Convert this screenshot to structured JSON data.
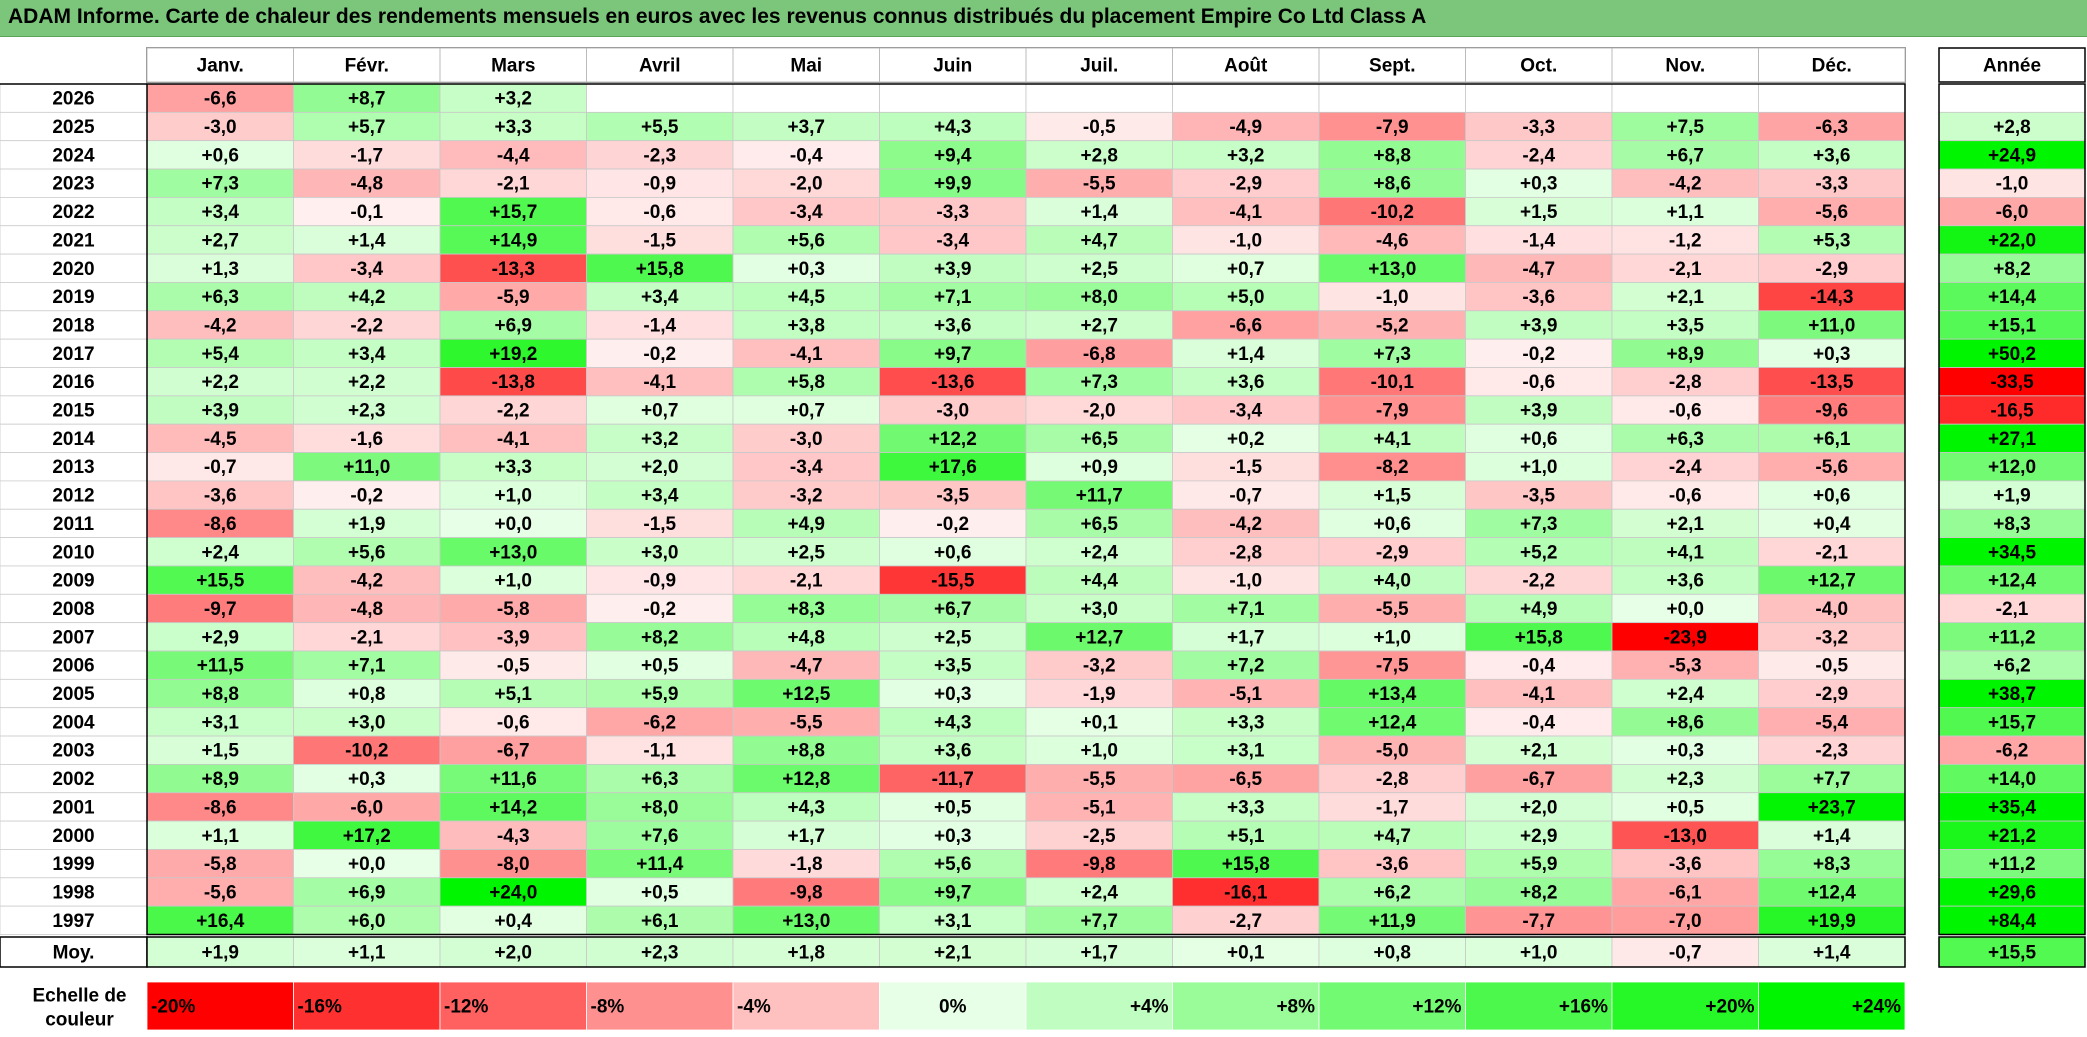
{
  "title": "ADAM Informe. Carte de chaleur des rendements mensuels en euros avec les revenus connus distribués du placement Empire Co Ltd Class A",
  "colors": {
    "title_bg": "#7bc67b",
    "positive_max": "#00ff00",
    "negative_max": "#ff0000",
    "neutral": "#ffffff"
  },
  "chart_data": {
    "type": "heatmap",
    "title": "ADAM Informe. Carte de chaleur des rendements mensuels en euros avec les revenus connus distribués du placement Empire Co Ltd Class A",
    "months": [
      "Janv.",
      "Févr.",
      "Mars",
      "Avril",
      "Mai",
      "Juin",
      "Juil.",
      "Août",
      "Sept.",
      "Oct.",
      "Nov.",
      "Déc."
    ],
    "year_header": "Année",
    "rows": [
      {
        "year": "2026",
        "values": [
          "-6,6",
          "+8,7",
          "+3,2",
          "",
          "",
          "",
          "",
          "",
          "",
          "",
          "",
          ""
        ],
        "annual": ""
      },
      {
        "year": "2025",
        "values": [
          "-3,0",
          "+5,7",
          "+3,3",
          "+5,5",
          "+3,7",
          "+4,3",
          "-0,5",
          "-4,9",
          "-7,9",
          "-3,3",
          "+7,5",
          "-6,3"
        ],
        "annual": "+2,8"
      },
      {
        "year": "2024",
        "values": [
          "+0,6",
          "-1,7",
          "-4,4",
          "-2,3",
          "-0,4",
          "+9,4",
          "+2,8",
          "+3,2",
          "+8,8",
          "-2,4",
          "+6,7",
          "+3,6"
        ],
        "annual": "+24,9"
      },
      {
        "year": "2023",
        "values": [
          "+7,3",
          "-4,8",
          "-2,1",
          "-0,9",
          "-2,0",
          "+9,9",
          "-5,5",
          "-2,9",
          "+8,6",
          "+0,3",
          "-4,2",
          "-3,3"
        ],
        "annual": "-1,0"
      },
      {
        "year": "2022",
        "values": [
          "+3,4",
          "-0,1",
          "+15,7",
          "-0,6",
          "-3,4",
          "-3,3",
          "+1,4",
          "-4,1",
          "-10,2",
          "+1,5",
          "+1,1",
          "-5,6"
        ],
        "annual": "-6,0"
      },
      {
        "year": "2021",
        "values": [
          "+2,7",
          "+1,4",
          "+14,9",
          "-1,5",
          "+5,6",
          "-3,4",
          "+4,7",
          "-1,0",
          "-4,6",
          "-1,4",
          "-1,2",
          "+5,3"
        ],
        "annual": "+22,0"
      },
      {
        "year": "2020",
        "values": [
          "+1,3",
          "-3,4",
          "-13,3",
          "+15,8",
          "+0,3",
          "+3,9",
          "+2,5",
          "+0,7",
          "+13,0",
          "-4,7",
          "-2,1",
          "-2,9"
        ],
        "annual": "+8,2"
      },
      {
        "year": "2019",
        "values": [
          "+6,3",
          "+4,2",
          "-5,9",
          "+3,4",
          "+4,5",
          "+7,1",
          "+8,0",
          "+5,0",
          "-1,0",
          "-3,6",
          "+2,1",
          "-14,3"
        ],
        "annual": "+14,4"
      },
      {
        "year": "2018",
        "values": [
          "-4,2",
          "-2,2",
          "+6,9",
          "-1,4",
          "+3,8",
          "+3,6",
          "+2,7",
          "-6,6",
          "-5,2",
          "+3,9",
          "+3,5",
          "+11,0"
        ],
        "annual": "+15,1"
      },
      {
        "year": "2017",
        "values": [
          "+5,4",
          "+3,4",
          "+19,2",
          "-0,2",
          "-4,1",
          "+9,7",
          "-6,8",
          "+1,4",
          "+7,3",
          "-0,2",
          "+8,9",
          "+0,3"
        ],
        "annual": "+50,2"
      },
      {
        "year": "2016",
        "values": [
          "+2,2",
          "+2,2",
          "-13,8",
          "-4,1",
          "+5,8",
          "-13,6",
          "+7,3",
          "+3,6",
          "-10,1",
          "-0,6",
          "-2,8",
          "-13,5"
        ],
        "annual": "-33,5"
      },
      {
        "year": "2015",
        "values": [
          "+3,9",
          "+2,3",
          "-2,2",
          "+0,7",
          "+0,7",
          "-3,0",
          "-2,0",
          "-3,4",
          "-7,9",
          "+3,9",
          "-0,6",
          "-9,6"
        ],
        "annual": "-16,5"
      },
      {
        "year": "2014",
        "values": [
          "-4,5",
          "-1,6",
          "-4,1",
          "+3,2",
          "-3,0",
          "+12,2",
          "+6,5",
          "+0,2",
          "+4,1",
          "+0,6",
          "+6,3",
          "+6,1"
        ],
        "annual": "+27,1"
      },
      {
        "year": "2013",
        "values": [
          "-0,7",
          "+11,0",
          "+3,3",
          "+2,0",
          "-3,4",
          "+17,6",
          "+0,9",
          "-1,5",
          "-8,2",
          "+1,0",
          "-2,4",
          "-5,6"
        ],
        "annual": "+12,0"
      },
      {
        "year": "2012",
        "values": [
          "-3,6",
          "-0,2",
          "+1,0",
          "+3,4",
          "-3,2",
          "-3,5",
          "+11,7",
          "-0,7",
          "+1,5",
          "-3,5",
          "-0,6",
          "+0,6"
        ],
        "annual": "+1,9"
      },
      {
        "year": "2011",
        "values": [
          "-8,6",
          "+1,9",
          "+0,0",
          "-1,5",
          "+4,9",
          "-0,2",
          "+6,5",
          "-4,2",
          "+0,6",
          "+7,3",
          "+2,1",
          "+0,4"
        ],
        "annual": "+8,3"
      },
      {
        "year": "2010",
        "values": [
          "+2,4",
          "+5,6",
          "+13,0",
          "+3,0",
          "+2,5",
          "+0,6",
          "+2,4",
          "-2,8",
          "-2,9",
          "+5,2",
          "+4,1",
          "-2,1"
        ],
        "annual": "+34,5"
      },
      {
        "year": "2009",
        "values": [
          "+15,5",
          "-4,2",
          "+1,0",
          "-0,9",
          "-2,1",
          "-15,5",
          "+4,4",
          "-1,0",
          "+4,0",
          "-2,2",
          "+3,6",
          "+12,7"
        ],
        "annual": "+12,4"
      },
      {
        "year": "2008",
        "values": [
          "-9,7",
          "-4,8",
          "-5,8",
          "-0,2",
          "+8,3",
          "+6,7",
          "+3,0",
          "+7,1",
          "-5,5",
          "+4,9",
          "+0,0",
          "-4,0"
        ],
        "annual": "-2,1"
      },
      {
        "year": "2007",
        "values": [
          "+2,9",
          "-2,1",
          "-3,9",
          "+8,2",
          "+4,8",
          "+2,5",
          "+12,7",
          "+1,7",
          "+1,0",
          "+15,8",
          "-23,9",
          "-3,2"
        ],
        "annual": "+11,2"
      },
      {
        "year": "2006",
        "values": [
          "+11,5",
          "+7,1",
          "-0,5",
          "+0,5",
          "-4,7",
          "+3,5",
          "-3,2",
          "+7,2",
          "-7,5",
          "-0,4",
          "-5,3",
          "-0,5"
        ],
        "annual": "+6,2"
      },
      {
        "year": "2005",
        "values": [
          "+8,8",
          "+0,8",
          "+5,1",
          "+5,9",
          "+12,5",
          "+0,3",
          "-1,9",
          "-5,1",
          "+13,4",
          "-4,1",
          "+2,4",
          "-2,9"
        ],
        "annual": "+38,7"
      },
      {
        "year": "2004",
        "values": [
          "+3,1",
          "+3,0",
          "-0,6",
          "-6,2",
          "-5,5",
          "+4,3",
          "+0,1",
          "+3,3",
          "+12,4",
          "-0,4",
          "+8,6",
          "-5,4"
        ],
        "annual": "+15,7"
      },
      {
        "year": "2003",
        "values": [
          "+1,5",
          "-10,2",
          "-6,7",
          "-1,1",
          "+8,8",
          "+3,6",
          "+1,0",
          "+3,1",
          "-5,0",
          "+2,1",
          "+0,3",
          "-2,3"
        ],
        "annual": "-6,2"
      },
      {
        "year": "2002",
        "values": [
          "+8,9",
          "+0,3",
          "+11,6",
          "+6,3",
          "+12,8",
          "-11,7",
          "-5,5",
          "-6,5",
          "-2,8",
          "-6,7",
          "+2,3",
          "+7,7"
        ],
        "annual": "+14,0"
      },
      {
        "year": "2001",
        "values": [
          "-8,6",
          "-6,0",
          "+14,2",
          "+8,0",
          "+4,3",
          "+0,5",
          "-5,1",
          "+3,3",
          "-1,7",
          "+2,0",
          "+0,5",
          "+23,7"
        ],
        "annual": "+35,4"
      },
      {
        "year": "2000",
        "values": [
          "+1,1",
          "+17,2",
          "-4,3",
          "+7,6",
          "+1,7",
          "+0,3",
          "-2,5",
          "+5,1",
          "+4,7",
          "+2,9",
          "-13,0",
          "+1,4"
        ],
        "annual": "+21,2"
      },
      {
        "year": "1999",
        "values": [
          "-5,8",
          "+0,0",
          "-8,0",
          "+11,4",
          "-1,8",
          "+5,6",
          "-9,8",
          "+15,8",
          "-3,6",
          "+5,9",
          "-3,6",
          "+8,3"
        ],
        "annual": "+11,2"
      },
      {
        "year": "1998",
        "values": [
          "-5,6",
          "+6,9",
          "+24,0",
          "+0,5",
          "-9,8",
          "+9,7",
          "+2,4",
          "-16,1",
          "+6,2",
          "+8,2",
          "-6,1",
          "+12,4"
        ],
        "annual": "+29,6"
      },
      {
        "year": "1997",
        "values": [
          "+16,4",
          "+6,0",
          "+0,4",
          "+6,1",
          "+13,0",
          "+3,1",
          "+7,7",
          "-2,7",
          "+11,9",
          "-7,7",
          "-7,0",
          "+19,9"
        ],
        "annual": "+84,4"
      }
    ],
    "average": {
      "label": "Moy.",
      "values": [
        "+1,9",
        "+1,1",
        "+2,0",
        "+2,3",
        "+1,8",
        "+2,1",
        "+1,7",
        "+0,1",
        "+0,8",
        "+1,0",
        "-0,7",
        "+1,4"
      ],
      "annual": "+15,5"
    },
    "scale": {
      "label": "Echelle de couleur",
      "items": [
        "-20%",
        "-16%",
        "-12%",
        "-8%",
        "-4%",
        "0%",
        "+4%",
        "+8%",
        "+12%",
        "+16%",
        "+20%",
        "+24%"
      ],
      "values": [
        -20,
        -16,
        -12,
        -8,
        -4,
        0,
        4,
        8,
        12,
        16,
        20,
        24
      ]
    }
  }
}
